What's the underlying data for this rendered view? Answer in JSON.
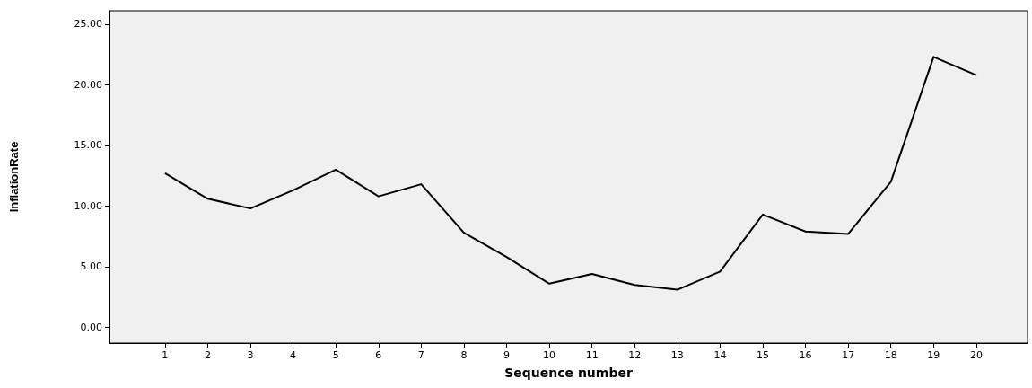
{
  "chart_data": {
    "type": "line",
    "xlabel": "Sequence number",
    "ylabel": "InflationRate",
    "x": [
      1,
      2,
      3,
      4,
      5,
      6,
      7,
      8,
      9,
      10,
      11,
      12,
      13,
      14,
      15,
      16,
      17,
      18,
      19,
      20
    ],
    "series": [
      {
        "color": "#000000",
        "values": [
          12.7,
          10.6,
          9.8,
          11.3,
          13.0,
          10.8,
          11.8,
          7.8,
          5.8,
          3.6,
          4.4,
          3.5,
          3.1,
          4.6,
          9.3,
          7.9,
          7.7,
          12.0,
          22.3,
          20.8
        ]
      }
    ],
    "xlim": [
      -0.3,
      21.2
    ],
    "xticks": [
      1,
      2,
      3,
      4,
      5,
      6,
      7,
      8,
      9,
      10,
      11,
      12,
      13,
      14,
      15,
      16,
      17,
      18,
      19,
      20
    ],
    "ylim": [
      -1.3,
      26.1
    ],
    "yticks": [
      {
        "value": 0,
        "label": "0.00"
      },
      {
        "value": 5,
        "label": "5.00"
      },
      {
        "value": 10,
        "label": "10.00"
      },
      {
        "value": 15,
        "label": "15.00"
      },
      {
        "value": 20,
        "label": "20.00"
      },
      {
        "value": 25,
        "label": "25.00"
      }
    ],
    "marker": "none",
    "line_style": "solid"
  }
}
